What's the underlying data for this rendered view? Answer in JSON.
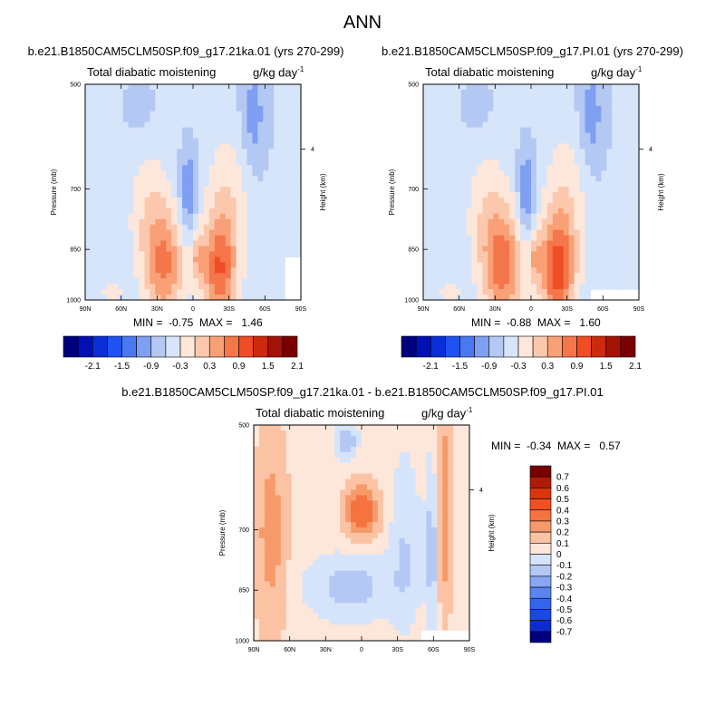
{
  "page_title": "ANN",
  "panels": [
    {
      "case_title": "b.e21.B1850CAM5CLM50SP.f09_g17.21ka.01 (yrs 270-299)",
      "variable": "Total diabatic moistening",
      "units_base": "g/kg day",
      "units_exp": "-1",
      "min_max": "MIN =  -0.75  MAX =   1.46",
      "ylabel": "Pressure (mb)",
      "ylabel_right": "Height (km)"
    },
    {
      "case_title": "b.e21.B1850CAM5CLM50SP.f09_g17.PI.01 (yrs 270-299)",
      "variable": "Total diabatic moistening",
      "units_base": "g/kg day",
      "units_exp": "-1",
      "min_max": "MIN =  -0.88  MAX =   1.60",
      "ylabel": "Pressure (mb)",
      "ylabel_right": "Height (km)"
    },
    {
      "case_title": "b.e21.B1850CAM5CLM50SP.f09_g17.21ka.01 - b.e21.B1850CAM5CLM50SP.f09_g17.PI.01",
      "variable": "Total diabatic moistening",
      "units_base": "g/kg day",
      "units_exp": "-1",
      "min_max": "MIN =  -0.34  MAX =   0.57",
      "ylabel": "Pressure (mb)",
      "ylabel_right": "Height (km)"
    }
  ],
  "chart_data": [
    {
      "type": "heatmap",
      "title": "Total diabatic moistening",
      "units": "g/kg day-1",
      "x_ticks": [
        "90N",
        "60N",
        "30N",
        "0",
        "30S",
        "60S",
        "90S"
      ],
      "y_ticks": [
        "500",
        "700",
        "850",
        "1000"
      ],
      "y_right_ticks": [
        "4"
      ],
      "ylabel": "Pressure (mb)",
      "ylabel_right": "Height (km)",
      "min": -0.75,
      "max": 1.46,
      "colorbar_labels": [
        "-2.1",
        "-1.5",
        "-0.9",
        "-0.3",
        "0.3",
        "0.9",
        "1.5",
        "2.1"
      ]
    },
    {
      "type": "heatmap",
      "title": "Total diabatic moistening",
      "units": "g/kg day-1",
      "x_ticks": [
        "90N",
        "60N",
        "30N",
        "0",
        "30S",
        "60S",
        "90S"
      ],
      "y_ticks": [
        "500",
        "700",
        "850",
        "1000"
      ],
      "y_right_ticks": [
        "4"
      ],
      "ylabel": "Pressure (mb)",
      "ylabel_right": "Height (km)",
      "min": -0.88,
      "max": 1.6,
      "colorbar_labels": [
        "-2.1",
        "-1.5",
        "-0.9",
        "-0.3",
        "0.3",
        "0.9",
        "1.5",
        "2.1"
      ]
    },
    {
      "type": "heatmap",
      "title": "Total diabatic moistening",
      "units": "g/kg day-1",
      "x_ticks": [
        "90N",
        "60N",
        "30N",
        "0",
        "30S",
        "60S",
        "90S"
      ],
      "y_ticks": [
        "500",
        "700",
        "850",
        "1000"
      ],
      "y_right_ticks": [
        "4"
      ],
      "ylabel": "Pressure (mb)",
      "ylabel_right": "Height (km)",
      "min": -0.34,
      "max": 0.57,
      "colorbar_labels": [
        "0.7",
        "0.6",
        "0.5",
        "0.4",
        "0.3",
        "0.2",
        "0.1",
        "0",
        "-0.1",
        "-0.2",
        "-0.3",
        "-0.4",
        "-0.5",
        "-0.6",
        "-0.7"
      ]
    }
  ],
  "colormap": [
    "#00007f",
    "#0010b3",
    "#0a2fd8",
    "#1f52f0",
    "#4a78f2",
    "#7e9ff2",
    "#b4c8f4",
    "#d7e5fb",
    "#fde7da",
    "#fcc8ad",
    "#f9a077",
    "#f5764a",
    "#f04d26",
    "#cc2a0f",
    "#a21205",
    "#7a0000"
  ],
  "colormap_diff": [
    "#7a0000",
    "#b01a08",
    "#d9360e",
    "#f24f22",
    "#f5733f",
    "#f79a6b",
    "#fbc3a3",
    "#fde7da",
    "#d6e4fb",
    "#b4c8f4",
    "#87a6f3",
    "#5a85f1",
    "#3565ef",
    "#1a48e8",
    "#0b2ccf",
    "#00007f"
  ]
}
